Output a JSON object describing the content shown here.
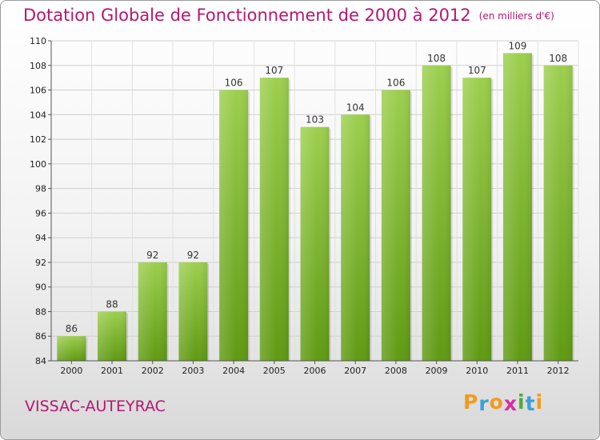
{
  "header": {
    "title": "Dotation Globale de Fonctionnement de 2000 à 2012",
    "unit": "(en milliers d'€)"
  },
  "footer": {
    "commune": "VISSAC-AUTEYRAC",
    "logo_letters": [
      "P",
      "r",
      "o",
      "x",
      "i",
      "t",
      "i"
    ],
    "logo_colors": [
      "#f29a1d",
      "#3aa0db",
      "#f29a1d",
      "#d6309e",
      "#4daa3c",
      "#3aa0db",
      "#f29a1d"
    ]
  },
  "chart_data": {
    "type": "bar",
    "title": "Dotation Globale de Fonctionnement de 2000 à 2012",
    "subtitle": "(en milliers d'€)",
    "categories": [
      "2000",
      "2001",
      "2002",
      "2003",
      "2004",
      "2005",
      "2006",
      "2007",
      "2008",
      "2009",
      "2010",
      "2011",
      "2012"
    ],
    "values": [
      86,
      88,
      92,
      92,
      106,
      107,
      103,
      104,
      106,
      108,
      107,
      109,
      108
    ],
    "ylim": [
      84,
      110
    ],
    "yticks": [
      84,
      86,
      88,
      90,
      92,
      94,
      96,
      98,
      100,
      102,
      104,
      106,
      108,
      110
    ],
    "grid": true,
    "bar_color_top": "#9ccf4e",
    "bar_color_bottom": "#5f9a12"
  }
}
